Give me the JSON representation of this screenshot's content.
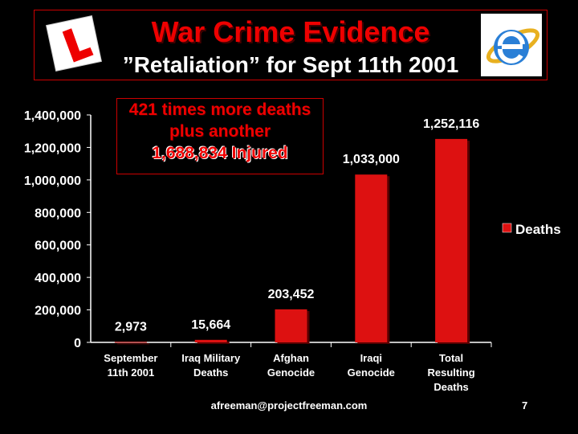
{
  "header": {
    "title": "War Crime Evidence",
    "subtitle": "”Retaliation” for Sept 11th 2001"
  },
  "logos": {
    "left": "learner-plate-logo",
    "right": "internet-explorer-logo"
  },
  "callout": {
    "line1": "421 times more deaths",
    "line2": "plus another",
    "line3": "1,688,834 Injured"
  },
  "footer": {
    "email": "afreeman@projectfreeman.com",
    "page": "7"
  },
  "colors": {
    "bar": "#dd1111",
    "accent": "#ee0000",
    "background": "#000000"
  },
  "chart_data": {
    "type": "bar",
    "categories": [
      [
        "September",
        "11th 2001"
      ],
      [
        "Iraq Military",
        "Deaths"
      ],
      [
        "Afghan",
        "Genocide"
      ],
      [
        "Iraqi",
        "Genocide"
      ],
      [
        "Total",
        "Resulting",
        "Deaths"
      ]
    ],
    "series": [
      {
        "name": "Deaths",
        "values": [
          2973,
          15664,
          203452,
          1033000,
          1252116
        ]
      }
    ],
    "data_labels": [
      "2,973",
      "15,664",
      "203,452",
      "1,033,000",
      "1,252,116"
    ],
    "yticks": [
      "0",
      "200,000",
      "400,000",
      "600,000",
      "800,000",
      "1,000,000",
      "1,200,000",
      "1,400,000"
    ],
    "ylim": [
      0,
      1400000
    ],
    "legend": "right",
    "grid": false
  }
}
